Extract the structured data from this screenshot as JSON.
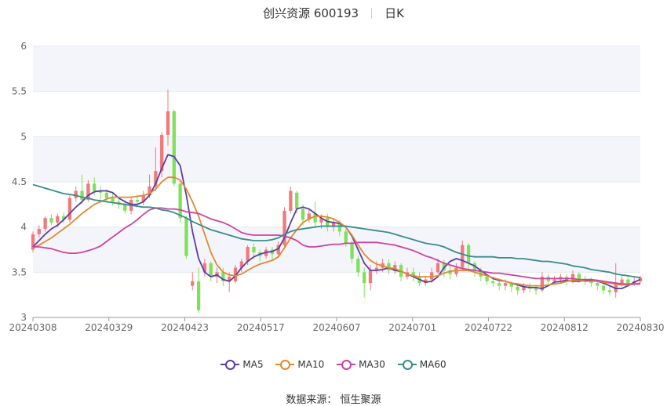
{
  "chart_data": {
    "type": "candlestick",
    "title": "创兴资源 600193",
    "period": "日K",
    "source": "数据来源：  恒生聚源",
    "ylim": [
      3,
      6
    ],
    "yticks": [
      "3",
      "3.5",
      "4",
      "4.5",
      "5",
      "5.5",
      "6"
    ],
    "x_ticks": [
      "20240308",
      "20240329",
      "20240423",
      "20240517",
      "20240607",
      "20240701",
      "20240722",
      "20240812",
      "20240830"
    ],
    "up_color": "#f07a7a",
    "down_color": "#7fe05a",
    "series": [
      {
        "name": "MA5",
        "color": "#5b3da8",
        "values": [
          3.78,
          3.85,
          3.92,
          3.98,
          4.02,
          4.08,
          4.15,
          4.22,
          4.28,
          4.35,
          4.39,
          4.4,
          4.4,
          4.38,
          4.32,
          4.28,
          4.25,
          4.25,
          4.28,
          4.35,
          4.48,
          4.65,
          4.8,
          4.78,
          4.68,
          4.35,
          3.95,
          3.65,
          3.5,
          3.45,
          3.47,
          3.42,
          3.4,
          3.46,
          3.55,
          3.62,
          3.67,
          3.7,
          3.72,
          3.73,
          3.76,
          3.88,
          4.05,
          4.2,
          4.22,
          4.2,
          4.15,
          4.1,
          4.06,
          4.05,
          4.04,
          4.0,
          3.9,
          3.75,
          3.6,
          3.52,
          3.52,
          3.53,
          3.55,
          3.52,
          3.51,
          3.48,
          3.45,
          3.42,
          3.39,
          3.4,
          3.45,
          3.55,
          3.62,
          3.65,
          3.63,
          3.6,
          3.57,
          3.52,
          3.47,
          3.43,
          3.41,
          3.4,
          3.38,
          3.36,
          3.34,
          3.33,
          3.33,
          3.32,
          3.35,
          3.39,
          3.4,
          3.41,
          3.4,
          3.4,
          3.41,
          3.41,
          3.4,
          3.38,
          3.35,
          3.32,
          3.32,
          3.35,
          3.39,
          3.42
        ]
      },
      {
        "name": "MA10",
        "color": "#e08a2e",
        "values": [
          3.77,
          3.8,
          3.84,
          3.88,
          3.93,
          3.98,
          4.03,
          4.09,
          4.15,
          4.2,
          4.25,
          4.28,
          4.31,
          4.33,
          4.33,
          4.33,
          4.33,
          4.34,
          4.35,
          4.37,
          4.42,
          4.5,
          4.55,
          4.55,
          4.52,
          4.42,
          4.28,
          4.12,
          3.92,
          3.72,
          3.58,
          3.5,
          3.47,
          3.46,
          3.48,
          3.52,
          3.56,
          3.59,
          3.61,
          3.63,
          3.67,
          3.77,
          3.88,
          3.97,
          4.05,
          4.09,
          4.12,
          4.12,
          4.11,
          4.09,
          4.05,
          4.0,
          3.91,
          3.8,
          3.7,
          3.63,
          3.59,
          3.57,
          3.55,
          3.54,
          3.51,
          3.48,
          3.46,
          3.45,
          3.45,
          3.45,
          3.46,
          3.49,
          3.51,
          3.52,
          3.52,
          3.52,
          3.5,
          3.48,
          3.46,
          3.44,
          3.42,
          3.4,
          3.38,
          3.37,
          3.36,
          3.35,
          3.35,
          3.35,
          3.36,
          3.37,
          3.38,
          3.4,
          3.41,
          3.41,
          3.4,
          3.4,
          3.4,
          3.39,
          3.38,
          3.37,
          3.36,
          3.36,
          3.37,
          3.38
        ]
      },
      {
        "name": "MA30",
        "color": "#cc44a0",
        "values": [
          3.78,
          3.78,
          3.77,
          3.76,
          3.74,
          3.72,
          3.71,
          3.71,
          3.72,
          3.74,
          3.76,
          3.79,
          3.84,
          3.89,
          3.94,
          3.99,
          4.03,
          4.08,
          4.14,
          4.19,
          4.21,
          4.21,
          4.2,
          4.2,
          4.19,
          4.17,
          4.16,
          4.15,
          4.12,
          4.09,
          4.07,
          4.05,
          4.02,
          3.98,
          3.94,
          3.92,
          3.91,
          3.91,
          3.91,
          3.91,
          3.91,
          3.9,
          3.88,
          3.85,
          3.8,
          3.78,
          3.78,
          3.79,
          3.8,
          3.81,
          3.81,
          3.82,
          3.82,
          3.83,
          3.83,
          3.83,
          3.83,
          3.82,
          3.81,
          3.8,
          3.78,
          3.76,
          3.74,
          3.71,
          3.68,
          3.66,
          3.63,
          3.6,
          3.58,
          3.56,
          3.54,
          3.53,
          3.52,
          3.51,
          3.5,
          3.49,
          3.49,
          3.48,
          3.47,
          3.46,
          3.45,
          3.44,
          3.43,
          3.43,
          3.43,
          3.43,
          3.43,
          3.43,
          3.43,
          3.42,
          3.42,
          3.42,
          3.41,
          3.4,
          3.39,
          3.38,
          3.37,
          3.37,
          3.37,
          3.37
        ]
      },
      {
        "name": "MA60",
        "color": "#3a8c8c",
        "values": [
          4.47,
          4.45,
          4.43,
          4.41,
          4.39,
          4.37,
          4.36,
          4.35,
          4.33,
          4.32,
          4.3,
          4.29,
          4.28,
          4.27,
          4.26,
          4.25,
          4.24,
          4.23,
          4.22,
          4.22,
          4.21,
          4.19,
          4.18,
          4.16,
          4.13,
          4.1,
          4.06,
          4.03,
          4.0,
          3.97,
          3.95,
          3.93,
          3.91,
          3.89,
          3.87,
          3.86,
          3.85,
          3.85,
          3.85,
          3.86,
          3.88,
          3.92,
          3.95,
          3.97,
          3.98,
          3.99,
          4.0,
          4.01,
          4.01,
          4.01,
          4.01,
          4.01,
          4.0,
          3.99,
          3.98,
          3.97,
          3.96,
          3.95,
          3.94,
          3.92,
          3.9,
          3.88,
          3.86,
          3.84,
          3.82,
          3.81,
          3.8,
          3.78,
          3.75,
          3.72,
          3.7,
          3.68,
          3.67,
          3.67,
          3.67,
          3.67,
          3.66,
          3.66,
          3.66,
          3.65,
          3.65,
          3.64,
          3.63,
          3.62,
          3.62,
          3.61,
          3.6,
          3.59,
          3.57,
          3.56,
          3.55,
          3.53,
          3.52,
          3.51,
          3.5,
          3.48,
          3.47,
          3.46,
          3.45,
          3.44
        ]
      }
    ],
    "candles": [
      [
        3.75,
        3.92,
        3.95,
        3.72
      ],
      [
        3.92,
        3.98,
        4.02,
        3.88
      ],
      [
        3.98,
        4.1,
        4.12,
        3.95
      ],
      [
        4.1,
        4.05,
        4.14,
        4.02
      ],
      [
        4.05,
        4.12,
        4.15,
        4.0
      ],
      [
        4.12,
        4.08,
        4.16,
        4.04
      ],
      [
        4.08,
        4.32,
        4.35,
        4.05
      ],
      [
        4.32,
        4.4,
        4.45,
        4.28
      ],
      [
        4.4,
        4.3,
        4.58,
        4.25
      ],
      [
        4.3,
        4.48,
        4.52,
        4.28
      ],
      [
        4.48,
        4.4,
        4.55,
        4.35
      ],
      [
        4.4,
        4.38,
        4.45,
        4.3
      ],
      [
        4.38,
        4.32,
        4.42,
        4.28
      ],
      [
        4.32,
        4.28,
        4.38,
        4.24
      ],
      [
        4.28,
        4.25,
        4.32,
        4.2
      ],
      [
        4.25,
        4.18,
        4.3,
        4.15
      ],
      [
        4.18,
        4.3,
        4.34,
        4.14
      ],
      [
        4.3,
        4.28,
        4.36,
        4.24
      ],
      [
        4.28,
        4.35,
        4.4,
        4.24
      ],
      [
        4.35,
        4.45,
        4.58,
        4.32
      ],
      [
        4.45,
        4.62,
        4.88,
        4.4
      ],
      [
        4.62,
        5.02,
        5.05,
        4.55
      ],
      [
        5.02,
        5.28,
        5.52,
        4.9
      ],
      [
        5.28,
        4.48,
        5.3,
        4.45
      ],
      [
        4.48,
        4.1,
        4.52,
        4.05
      ],
      [
        4.1,
        3.68,
        4.12,
        3.65
      ],
      [
        3.35,
        3.4,
        3.5,
        3.3
      ],
      [
        3.4,
        3.08,
        3.55,
        3.05
      ],
      [
        3.5,
        3.6,
        3.65,
        3.45
      ],
      [
        3.6,
        3.45,
        3.62,
        3.4
      ],
      [
        3.45,
        3.5,
        3.55,
        3.38
      ],
      [
        3.5,
        3.4,
        3.55,
        3.35
      ],
      [
        3.4,
        3.45,
        3.5,
        3.28
      ],
      [
        3.4,
        3.55,
        3.58,
        3.38
      ],
      [
        3.55,
        3.62,
        3.65,
        3.5
      ],
      [
        3.62,
        3.78,
        3.8,
        3.58
      ],
      [
        3.78,
        3.72,
        3.82,
        3.65
      ],
      [
        3.72,
        3.68,
        3.75,
        3.62
      ],
      [
        3.68,
        3.75,
        3.78,
        3.65
      ],
      [
        3.75,
        3.7,
        3.78,
        3.62
      ],
      [
        3.7,
        3.8,
        3.84,
        3.66
      ],
      [
        3.8,
        4.18,
        4.22,
        3.76
      ],
      [
        4.18,
        4.4,
        4.45,
        4.15
      ],
      [
        4.38,
        4.2,
        4.4,
        4.15
      ],
      [
        4.2,
        4.08,
        4.25,
        4.02
      ],
      [
        4.08,
        4.15,
        4.2,
        4.05
      ],
      [
        4.15,
        4.05,
        4.28,
        4.0
      ],
      [
        4.05,
        4.1,
        4.14,
        3.98
      ],
      [
        4.1,
        4.0,
        4.15,
        3.95
      ],
      [
        4.0,
        4.05,
        4.1,
        3.95
      ],
      [
        4.05,
        3.95,
        4.08,
        3.9
      ],
      [
        3.95,
        3.82,
        3.98,
        3.78
      ],
      [
        3.82,
        3.65,
        3.85,
        3.6
      ],
      [
        3.65,
        3.5,
        3.68,
        3.45
      ],
      [
        3.5,
        3.38,
        3.55,
        3.22
      ],
      [
        3.38,
        3.52,
        3.58,
        3.3
      ],
      [
        3.52,
        3.55,
        3.62,
        3.48
      ],
      [
        3.55,
        3.6,
        3.65,
        3.5
      ],
      [
        3.6,
        3.52,
        3.64,
        3.48
      ],
      [
        3.52,
        3.58,
        3.62,
        3.48
      ],
      [
        3.58,
        3.45,
        3.6,
        3.4
      ],
      [
        3.45,
        3.5,
        3.55,
        3.42
      ],
      [
        3.5,
        3.45,
        3.55,
        3.4
      ],
      [
        3.45,
        3.38,
        3.5,
        3.35
      ],
      [
        3.38,
        3.42,
        3.46,
        3.35
      ],
      [
        3.42,
        3.5,
        3.55,
        3.38
      ],
      [
        3.5,
        3.6,
        3.65,
        3.48
      ],
      [
        3.6,
        3.52,
        3.64,
        3.45
      ],
      [
        3.52,
        3.48,
        3.58,
        3.42
      ],
      [
        3.48,
        3.55,
        3.6,
        3.45
      ],
      [
        3.55,
        3.8,
        3.85,
        3.52
      ],
      [
        3.8,
        3.6,
        3.82,
        3.5
      ],
      [
        3.6,
        3.52,
        3.62,
        3.45
      ],
      [
        3.52,
        3.45,
        3.55,
        3.4
      ],
      [
        3.45,
        3.4,
        3.48,
        3.36
      ],
      [
        3.4,
        3.38,
        3.45,
        3.34
      ],
      [
        3.38,
        3.35,
        3.42,
        3.3
      ],
      [
        3.35,
        3.38,
        3.42,
        3.3
      ],
      [
        3.38,
        3.34,
        3.4,
        3.28
      ],
      [
        3.34,
        3.3,
        3.38,
        3.25
      ],
      [
        3.3,
        3.34,
        3.38,
        3.27
      ],
      [
        3.34,
        3.32,
        3.38,
        3.28
      ],
      [
        3.32,
        3.3,
        3.36,
        3.25
      ],
      [
        3.3,
        3.45,
        3.5,
        3.28
      ],
      [
        3.45,
        3.4,
        3.48,
        3.35
      ],
      [
        3.4,
        3.42,
        3.46,
        3.36
      ],
      [
        3.42,
        3.45,
        3.48,
        3.38
      ],
      [
        3.45,
        3.4,
        3.48,
        3.36
      ],
      [
        3.4,
        3.48,
        3.52,
        3.38
      ],
      [
        3.48,
        3.42,
        3.5,
        3.38
      ],
      [
        3.42,
        3.4,
        3.46,
        3.36
      ],
      [
        3.4,
        3.38,
        3.44,
        3.34
      ],
      [
        3.38,
        3.35,
        3.42,
        3.3
      ],
      [
        3.35,
        3.3,
        3.38,
        3.26
      ],
      [
        3.3,
        3.28,
        3.35,
        3.24
      ],
      [
        3.28,
        3.38,
        3.6,
        3.22
      ],
      [
        3.38,
        3.42,
        3.46,
        3.34
      ],
      [
        3.42,
        3.38,
        3.46,
        3.34
      ],
      [
        3.38,
        3.4,
        3.44,
        3.35
      ],
      [
        3.4,
        3.44,
        3.46,
        3.38
      ]
    ]
  }
}
